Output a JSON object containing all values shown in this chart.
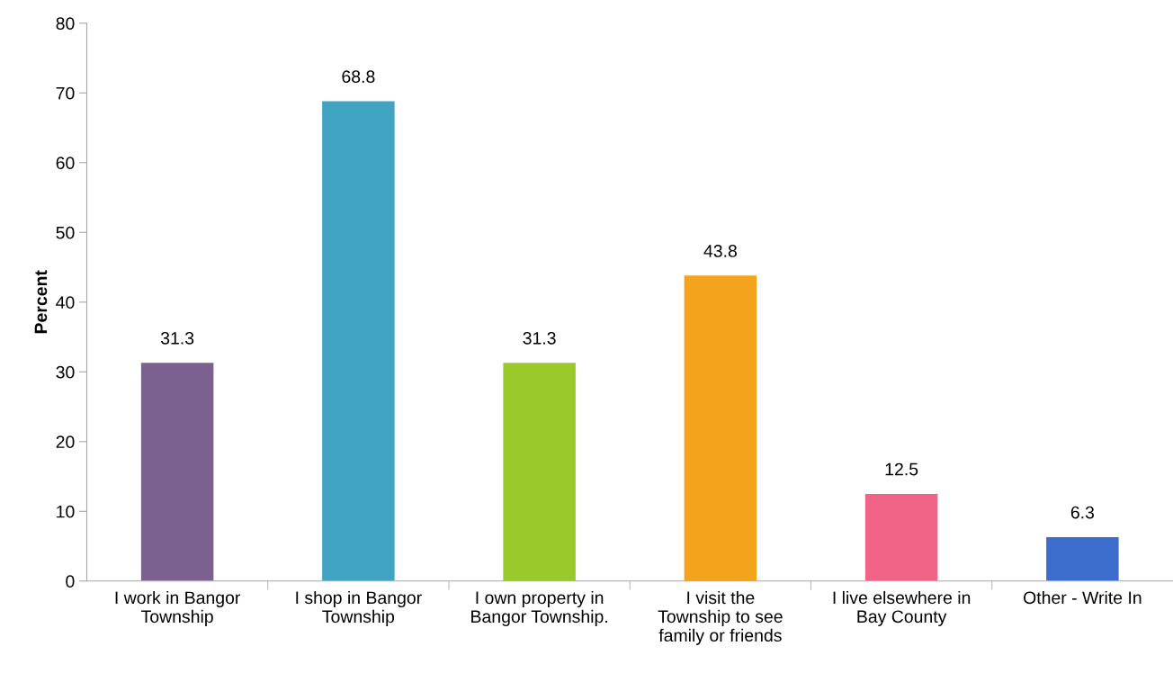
{
  "chart_data": {
    "type": "bar",
    "ylabel": "Percent",
    "categories": [
      "I work in Bangor\nTownship",
      "I shop in Bangor\nTownship",
      "I own property in\nBangor Township.",
      "I visit the\nTownship to see\nfamily or friends",
      "I live elsewhere in\nBay County",
      "Other - Write In"
    ],
    "values": [
      31.3,
      68.8,
      31.3,
      43.8,
      12.5,
      6.3
    ],
    "colors": [
      "#7b6190",
      "#40a4c2",
      "#99c92a",
      "#f4a31c",
      "#ef6487",
      "#3d6dcc"
    ],
    "data_labels": true,
    "ylim": [
      0,
      80
    ],
    "yticks": [
      0,
      10,
      20,
      30,
      40,
      50,
      60,
      70,
      80
    ],
    "grid": false,
    "legend": false
  }
}
